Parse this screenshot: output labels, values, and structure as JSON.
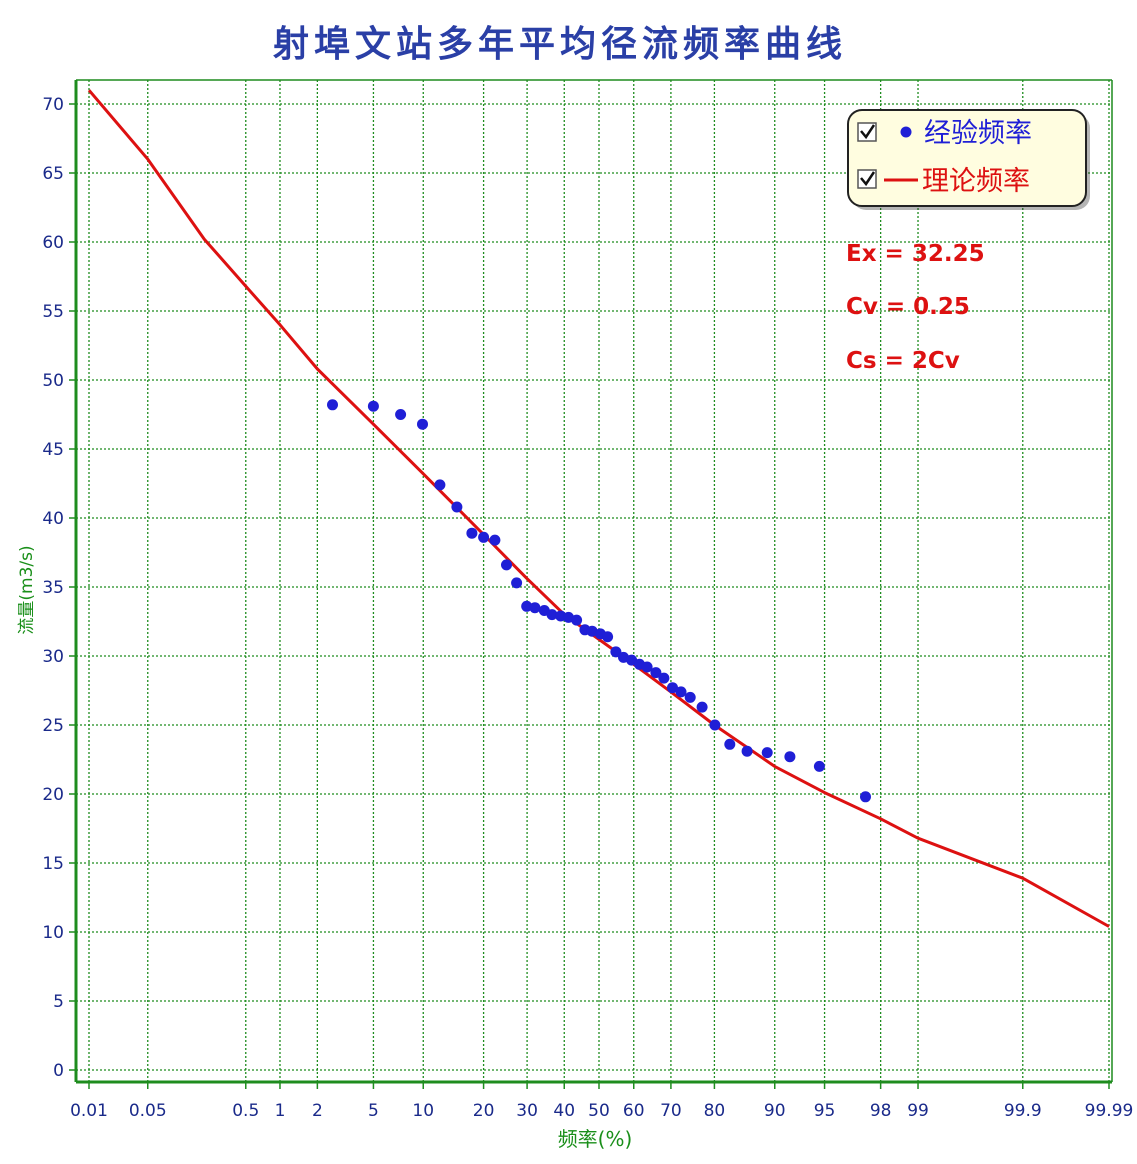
{
  "chart_data": {
    "type": "scatter",
    "title": "射埠文站多年平均径流频率曲线",
    "xlabel": "频率(%)",
    "ylabel": "流量(m3/s)",
    "x_scale": "probability (normal) scale",
    "ylim": [
      0,
      72
    ],
    "y_ticks": [
      0,
      5,
      10,
      15,
      20,
      25,
      30,
      35,
      40,
      45,
      50,
      55,
      60,
      65,
      70
    ],
    "x_ticks": [
      0.01,
      0.05,
      0.5,
      1,
      2,
      5,
      10,
      20,
      30,
      40,
      50,
      60,
      70,
      80,
      90,
      95,
      98,
      99,
      99.9,
      99.99
    ],
    "x_tick_labels": [
      "0.01",
      "0.05",
      "0.5",
      "1",
      "2",
      "5",
      "10",
      "20",
      "30",
      "40",
      "50",
      "60",
      "70",
      "80",
      "90",
      "95",
      "98",
      "99",
      "99.9",
      "99.99"
    ],
    "grid": true,
    "legend_position": "top-right",
    "legend": [
      {
        "label": "经验频率",
        "marker": "point",
        "checked": true
      },
      {
        "label": "理论频率",
        "marker": "line",
        "checked": true
      }
    ],
    "annotations": [
      "Ex = 32.25",
      "Cv = 0.25",
      "Cs = 2Cv"
    ],
    "series": [
      {
        "name": "经验频率",
        "kind": "scatter",
        "color": "#1f1fd6",
        "points": [
          [
            2.6,
            48.2
          ],
          [
            5.0,
            48.1
          ],
          [
            7.4,
            47.5
          ],
          [
            9.9,
            46.8
          ],
          [
            12.3,
            42.4
          ],
          [
            15.0,
            40.8
          ],
          [
            17.7,
            38.9
          ],
          [
            20.0,
            38.6
          ],
          [
            22.4,
            38.4
          ],
          [
            25.0,
            36.6
          ],
          [
            27.4,
            35.3
          ],
          [
            29.9,
            33.6
          ],
          [
            32.0,
            33.5
          ],
          [
            34.5,
            33.3
          ],
          [
            36.6,
            33.0
          ],
          [
            39.0,
            32.9
          ],
          [
            41.2,
            32.8
          ],
          [
            43.5,
            32.6
          ],
          [
            45.9,
            31.9
          ],
          [
            48.0,
            31.8
          ],
          [
            50.4,
            31.6
          ],
          [
            52.5,
            31.4
          ],
          [
            54.9,
            30.3
          ],
          [
            57.1,
            29.9
          ],
          [
            59.4,
            29.7
          ],
          [
            61.6,
            29.4
          ],
          [
            63.7,
            29.2
          ],
          [
            66.1,
            28.8
          ],
          [
            68.2,
            28.4
          ],
          [
            70.4,
            27.7
          ],
          [
            72.5,
            27.4
          ],
          [
            74.7,
            27.0
          ],
          [
            77.4,
            26.3
          ],
          [
            80.1,
            25.0
          ],
          [
            83.0,
            23.6
          ],
          [
            86.0,
            23.1
          ],
          [
            89.0,
            23.0
          ],
          [
            91.8,
            22.7
          ],
          [
            94.6,
            22.0
          ],
          [
            97.4,
            19.8
          ]
        ]
      },
      {
        "name": "理论频率",
        "kind": "line",
        "color": "#dd1111",
        "points": [
          [
            0.01,
            71.0
          ],
          [
            0.05,
            66.0
          ],
          [
            0.2,
            60.2
          ],
          [
            0.5,
            56.8
          ],
          [
            1,
            54.0
          ],
          [
            2,
            50.8
          ],
          [
            5,
            46.8
          ],
          [
            10,
            43.2
          ],
          [
            20,
            38.8
          ],
          [
            30,
            35.6
          ],
          [
            40,
            33.0
          ],
          [
            50,
            31.2
          ],
          [
            60,
            29.4
          ],
          [
            70,
            27.4
          ],
          [
            80,
            25.0
          ],
          [
            90,
            22.0
          ],
          [
            95,
            20.1
          ],
          [
            98,
            18.2
          ],
          [
            99,
            16.8
          ],
          [
            99.9,
            13.9
          ],
          [
            99.99,
            10.4
          ]
        ]
      }
    ]
  }
}
